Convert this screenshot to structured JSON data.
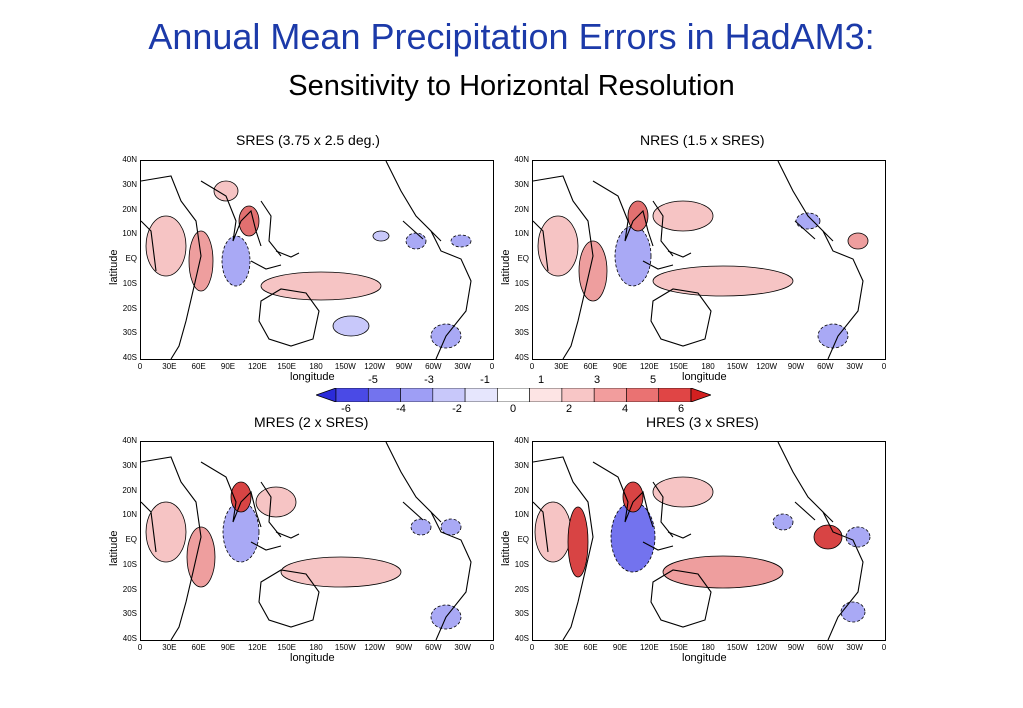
{
  "slide": {
    "title": "Annual Mean Precipitation Errors in HadAM3:",
    "subtitle": "Sensitivity to Horizontal Resolution"
  },
  "panels": [
    {
      "id": "sres",
      "title": "SRES (3.75 x 2.5 deg.)"
    },
    {
      "id": "nres",
      "title": "NRES (1.5 x SRES)"
    },
    {
      "id": "mres",
      "title": "MRES (2 x SRES)"
    },
    {
      "id": "hres",
      "title": "HRES (3 x SRES)"
    }
  ],
  "axes": {
    "ylabel": "latitude",
    "xlabel": "longitude",
    "yticks": [
      "40N",
      "30N",
      "20N",
      "10N",
      "EQ",
      "10S",
      "20S",
      "30S",
      "40S"
    ],
    "xticks": [
      "0",
      "30E",
      "60E",
      "90E",
      "120E",
      "150E",
      "180",
      "150W",
      "120W",
      "90W",
      "60W",
      "30W",
      "0"
    ]
  },
  "colorbar": {
    "upper_labels": [
      "-5",
      "-3",
      "-1",
      "1",
      "3",
      "5"
    ],
    "lower_labels": [
      "-6",
      "-4",
      "-2",
      "0",
      "2",
      "4",
      "6"
    ],
    "colors": [
      "#2b2bd9",
      "#4a4ae6",
      "#7373ee",
      "#9e9ef5",
      "#c8c8fa",
      "#e6e6fd",
      "#ffffff",
      "#fde4e4",
      "#f8c6c6",
      "#f29d9d",
      "#ea7272",
      "#e04545",
      "#d42020"
    ]
  }
}
